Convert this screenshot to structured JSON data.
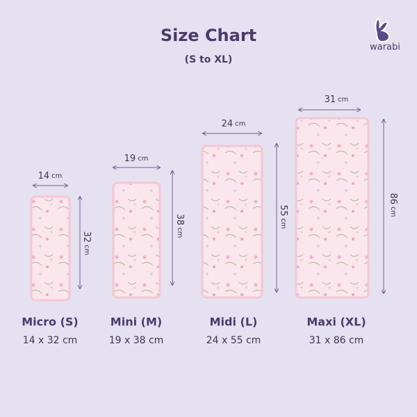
{
  "header": {
    "title": "Size Chart",
    "subtitle": "(S to XL)",
    "brand": "warabi"
  },
  "items": [
    {
      "name": "Micro (S)",
      "size": "14 x 32 cm",
      "width": 14,
      "height": 32,
      "unit": "cm"
    },
    {
      "name": "Mini (M)",
      "size": "19 x 38 cm",
      "width": 19,
      "height": 38,
      "unit": "cm"
    },
    {
      "name": "Midi (L)",
      "size": "24 x 55 cm",
      "width": 24,
      "height": 55,
      "unit": "cm"
    },
    {
      "name": "Maxi (XL)",
      "size": "31 x 86 cm",
      "width": 31,
      "height": 86,
      "unit": "cm"
    }
  ]
}
